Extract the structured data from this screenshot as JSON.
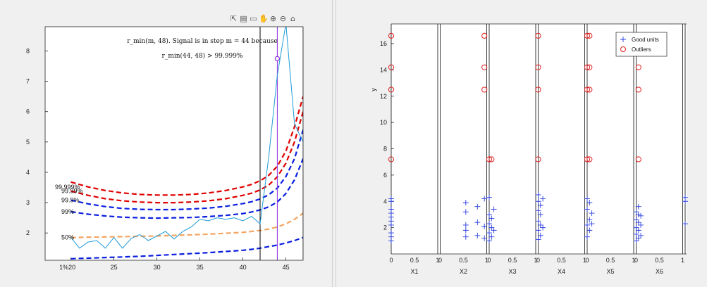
{
  "left_toolbar": {
    "icons": [
      "export-icon",
      "save-icon",
      "data-tips-icon",
      "pan-icon",
      "zoom-in-icon",
      "zoom-out-icon",
      "home-icon"
    ],
    "glyphs": [
      "⇱",
      "▤",
      "▭",
      "✋",
      "⊕",
      "⊖",
      "⌂"
    ]
  },
  "chart_data": [
    {
      "type": "line",
      "annotation_line1": "r_min(m, 48). Signal is in step m = 44 because",
      "annotation_line2": "r_min(44, 48) > 99.999%",
      "xlim": [
        17,
        47
      ],
      "ylim": [
        1.1,
        8.8
      ],
      "xticks": [
        20,
        25,
        30,
        35,
        40,
        45
      ],
      "yticks": [
        2,
        3,
        4,
        5,
        6,
        7,
        8
      ],
      "xtick_labels": [
        "1%20",
        "25",
        "30",
        "35",
        "40",
        "45"
      ],
      "ytick_labels": [
        "2",
        "3",
        "4",
        "5",
        "6",
        "7",
        "8"
      ],
      "grid": false,
      "envelopes": [
        {
          "label": "99.999%",
          "color": "#e00000",
          "x": [
            20,
            22,
            24,
            26,
            28,
            30,
            32,
            34,
            36,
            38,
            40,
            41,
            42,
            43,
            44,
            45,
            46,
            47
          ],
          "y": [
            3.68,
            3.52,
            3.4,
            3.32,
            3.27,
            3.25,
            3.25,
            3.27,
            3.32,
            3.4,
            3.52,
            3.6,
            3.72,
            3.9,
            4.2,
            4.7,
            5.5,
            6.5
          ]
        },
        {
          "label": "99.99%",
          "color": "#e00000",
          "x": [
            20,
            22,
            24,
            26,
            28,
            30,
            32,
            34,
            36,
            38,
            40,
            41,
            42,
            43,
            44,
            45,
            46,
            47
          ],
          "y": [
            3.38,
            3.24,
            3.13,
            3.06,
            3.02,
            3.0,
            3.0,
            3.02,
            3.06,
            3.13,
            3.24,
            3.31,
            3.42,
            3.58,
            3.85,
            4.3,
            5.0,
            6.0
          ]
        },
        {
          "label": "99.9%",
          "color": "#0a1ee0",
          "x": [
            20,
            22,
            24,
            26,
            28,
            30,
            32,
            34,
            36,
            38,
            40,
            41,
            42,
            43,
            44,
            45,
            46,
            47
          ],
          "y": [
            3.08,
            2.96,
            2.87,
            2.81,
            2.78,
            2.77,
            2.77,
            2.79,
            2.82,
            2.88,
            2.97,
            3.03,
            3.12,
            3.26,
            3.48,
            3.86,
            4.45,
            5.4
          ]
        },
        {
          "label": "99%",
          "color": "#0a1ee0",
          "x": [
            20,
            22,
            24,
            26,
            28,
            30,
            32,
            34,
            36,
            38,
            40,
            41,
            42,
            43,
            44,
            45,
            46,
            47
          ],
          "y": [
            2.7,
            2.62,
            2.56,
            2.52,
            2.5,
            2.49,
            2.5,
            2.51,
            2.54,
            2.58,
            2.64,
            2.69,
            2.76,
            2.86,
            3.02,
            3.3,
            3.75,
            4.45
          ]
        },
        {
          "label": "50%",
          "color": "#f4a460",
          "x": [
            20,
            22,
            24,
            26,
            28,
            30,
            32,
            34,
            36,
            38,
            40,
            41,
            42,
            43,
            44,
            45,
            46,
            47
          ],
          "y": [
            1.85,
            1.86,
            1.87,
            1.88,
            1.89,
            1.9,
            1.92,
            1.94,
            1.96,
            1.99,
            2.02,
            2.05,
            2.08,
            2.13,
            2.2,
            2.3,
            2.45,
            2.65
          ]
        },
        {
          "label": "1%",
          "color": "#0a1ee0",
          "x": [
            20,
            22,
            24,
            26,
            28,
            30,
            32,
            34,
            36,
            38,
            40,
            41,
            42,
            43,
            44,
            45,
            46,
            47
          ],
          "y": [
            1.15,
            1.17,
            1.19,
            1.21,
            1.23,
            1.26,
            1.29,
            1.32,
            1.35,
            1.39,
            1.43,
            1.46,
            1.5,
            1.55,
            1.6,
            1.67,
            1.75,
            1.85
          ]
        }
      ],
      "monitored": {
        "color": "#1f9bd6",
        "x": [
          20,
          21,
          22,
          23,
          24,
          25,
          26,
          27,
          28,
          29,
          30,
          31,
          32,
          33,
          34,
          35,
          36,
          37,
          38,
          39,
          40,
          41,
          42,
          43,
          44,
          45,
          46,
          47
        ],
        "y": [
          1.85,
          1.5,
          1.7,
          1.75,
          1.5,
          1.85,
          1.5,
          1.82,
          1.95,
          1.75,
          1.9,
          2.05,
          1.8,
          2.05,
          2.2,
          2.45,
          2.4,
          2.5,
          2.45,
          2.5,
          2.4,
          2.55,
          2.3,
          4.5,
          7.2,
          8.9,
          5.6,
          5.0
        ]
      },
      "vlines": [
        {
          "x": 42,
          "color": "#000000"
        },
        {
          "x": 44,
          "color": "#8a2be2"
        },
        {
          "x": 47,
          "color": "#000000"
        }
      ],
      "marker": {
        "x": 44,
        "y": 7.75,
        "color": "#8a2be2"
      }
    },
    {
      "type": "scatter",
      "ylabel": "y",
      "ylim": [
        0,
        17.5
      ],
      "yticks": [
        2,
        4,
        6,
        8,
        10,
        12,
        14,
        16
      ],
      "ytick_labels": [
        "2",
        "4",
        "6",
        "8",
        "10",
        "12",
        "14",
        "16"
      ],
      "panels": [
        "X1",
        "X2",
        "X3",
        "X4",
        "X5",
        "X6"
      ],
      "panel_ticks": [
        "0",
        "0.5",
        "1"
      ],
      "legend": {
        "placement": "top-right",
        "entries": [
          "Good units",
          "Outliers"
        ]
      },
      "series": [
        {
          "name": "Good units",
          "color": "#2b3fe0",
          "marker": "plus",
          "points": [
            {
              "p": 0,
              "x": 0.0,
              "y": 1.0
            },
            {
              "p": 0,
              "x": 0.0,
              "y": 1.6
            },
            {
              "p": 0,
              "x": 0.0,
              "y": 2.2
            },
            {
              "p": 0,
              "x": 0.0,
              "y": 2.8
            },
            {
              "p": 0,
              "x": 0.0,
              "y": 3.4
            },
            {
              "p": 0,
              "x": 0.0,
              "y": 4.0
            },
            {
              "p": 0,
              "x": 0.0,
              "y": 4.2
            },
            {
              "p": 0,
              "x": 0.0,
              "y": 1.3
            },
            {
              "p": 0,
              "x": 0.0,
              "y": 2.5
            },
            {
              "p": 0,
              "x": 0.0,
              "y": 3.1
            },
            {
              "p": 1,
              "x": 0.55,
              "y": 1.3
            },
            {
              "p": 1,
              "x": 0.55,
              "y": 1.8
            },
            {
              "p": 1,
              "x": 0.55,
              "y": 2.2
            },
            {
              "p": 1,
              "x": 0.55,
              "y": 3.2
            },
            {
              "p": 1,
              "x": 0.55,
              "y": 3.9
            },
            {
              "p": 1,
              "x": 0.8,
              "y": 1.4
            },
            {
              "p": 1,
              "x": 0.8,
              "y": 2.4
            },
            {
              "p": 1,
              "x": 0.8,
              "y": 3.6
            },
            {
              "p": 1,
              "x": 0.95,
              "y": 1.2
            },
            {
              "p": 1,
              "x": 0.95,
              "y": 2.1
            },
            {
              "p": 1,
              "x": 0.95,
              "y": 4.2
            },
            {
              "p": 2,
              "x": 0.0,
              "y": 1.0
            },
            {
              "p": 2,
              "x": 0.0,
              "y": 1.6
            },
            {
              "p": 2,
              "x": 0.0,
              "y": 2.3
            },
            {
              "p": 2,
              "x": 0.0,
              "y": 3.0
            },
            {
              "p": 2,
              "x": 0.05,
              "y": 1.3
            },
            {
              "p": 2,
              "x": 0.05,
              "y": 2.0
            },
            {
              "p": 2,
              "x": 0.05,
              "y": 2.7
            },
            {
              "p": 2,
              "x": 0.1,
              "y": 1.8
            },
            {
              "p": 2,
              "x": 0.1,
              "y": 3.4
            },
            {
              "p": 2,
              "x": 0.0,
              "y": 4.3
            },
            {
              "p": 3,
              "x": 0.0,
              "y": 1.1
            },
            {
              "p": 3,
              "x": 0.0,
              "y": 1.8
            },
            {
              "p": 3,
              "x": 0.0,
              "y": 2.5
            },
            {
              "p": 3,
              "x": 0.0,
              "y": 3.3
            },
            {
              "p": 3,
              "x": 0.0,
              "y": 4.0
            },
            {
              "p": 3,
              "x": 0.0,
              "y": 4.5
            },
            {
              "p": 3,
              "x": 0.05,
              "y": 1.4
            },
            {
              "p": 3,
              "x": 0.05,
              "y": 2.2
            },
            {
              "p": 3,
              "x": 0.05,
              "y": 3.0
            },
            {
              "p": 3,
              "x": 0.05,
              "y": 3.7
            },
            {
              "p": 3,
              "x": 0.1,
              "y": 2.0
            },
            {
              "p": 3,
              "x": 0.1,
              "y": 4.2
            },
            {
              "p": 4,
              "x": 0.0,
              "y": 1.3
            },
            {
              "p": 4,
              "x": 0.0,
              "y": 2.2
            },
            {
              "p": 4,
              "x": 0.0,
              "y": 3.4
            },
            {
              "p": 4,
              "x": 0.0,
              "y": 4.2
            },
            {
              "p": 4,
              "x": 0.05,
              "y": 1.8
            },
            {
              "p": 4,
              "x": 0.05,
              "y": 2.6
            },
            {
              "p": 4,
              "x": 0.05,
              "y": 3.9
            },
            {
              "p": 4,
              "x": 0.1,
              "y": 2.3
            },
            {
              "p": 4,
              "x": 0.1,
              "y": 3.1
            },
            {
              "p": 5,
              "x": 0.0,
              "y": 1.0
            },
            {
              "p": 5,
              "x": 0.0,
              "y": 1.5
            },
            {
              "p": 5,
              "x": 0.0,
              "y": 2.0
            },
            {
              "p": 5,
              "x": 0.0,
              "y": 2.6
            },
            {
              "p": 5,
              "x": 0.0,
              "y": 3.2
            },
            {
              "p": 5,
              "x": 0.05,
              "y": 1.2
            },
            {
              "p": 5,
              "x": 0.05,
              "y": 1.8
            },
            {
              "p": 5,
              "x": 0.05,
              "y": 2.4
            },
            {
              "p": 5,
              "x": 0.05,
              "y": 3.0
            },
            {
              "p": 5,
              "x": 0.05,
              "y": 3.6
            },
            {
              "p": 5,
              "x": 0.1,
              "y": 1.4
            },
            {
              "p": 5,
              "x": 0.1,
              "y": 2.2
            },
            {
              "p": 5,
              "x": 0.1,
              "y": 2.9
            },
            {
              "p": 6,
              "x": 0.0,
              "y": 2.3
            },
            {
              "p": 6,
              "x": 0.0,
              "y": 4.0
            },
            {
              "p": 6,
              "x": 0.0,
              "y": 4.3
            }
          ]
        },
        {
          "name": "Outliers",
          "color": "#e02020",
          "marker": "circle",
          "points": [
            {
              "p": 0,
              "x": 0.0,
              "y": 16.6
            },
            {
              "p": 0,
              "x": 0.0,
              "y": 14.2
            },
            {
              "p": 0,
              "x": 0.0,
              "y": 12.5
            },
            {
              "p": 0,
              "x": 0.0,
              "y": 7.2
            },
            {
              "p": 1,
              "x": 0.95,
              "y": 16.6
            },
            {
              "p": 1,
              "x": 0.95,
              "y": 14.2
            },
            {
              "p": 1,
              "x": 0.95,
              "y": 12.5
            },
            {
              "p": 2,
              "x": 0.0,
              "y": 7.2
            },
            {
              "p": 2,
              "x": 0.05,
              "y": 7.2
            },
            {
              "p": 3,
              "x": 0.0,
              "y": 16.6
            },
            {
              "p": 3,
              "x": 0.0,
              "y": 14.2
            },
            {
              "p": 3,
              "x": 0.0,
              "y": 12.5
            },
            {
              "p": 3,
              "x": 0.0,
              "y": 7.2
            },
            {
              "p": 4,
              "x": 0.0,
              "y": 16.6
            },
            {
              "p": 4,
              "x": 0.0,
              "y": 14.2
            },
            {
              "p": 4,
              "x": 0.0,
              "y": 12.5
            },
            {
              "p": 4,
              "x": 0.0,
              "y": 7.2
            },
            {
              "p": 4,
              "x": 0.05,
              "y": 16.6
            },
            {
              "p": 4,
              "x": 0.05,
              "y": 14.2
            },
            {
              "p": 4,
              "x": 0.05,
              "y": 12.5
            },
            {
              "p": 4,
              "x": 0.05,
              "y": 7.2
            },
            {
              "p": 5,
              "x": 0.05,
              "y": 16.6
            },
            {
              "p": 5,
              "x": 0.05,
              "y": 14.2
            },
            {
              "p": 5,
              "x": 0.05,
              "y": 12.5
            },
            {
              "p": 5,
              "x": 0.05,
              "y": 7.2
            }
          ]
        }
      ]
    }
  ]
}
